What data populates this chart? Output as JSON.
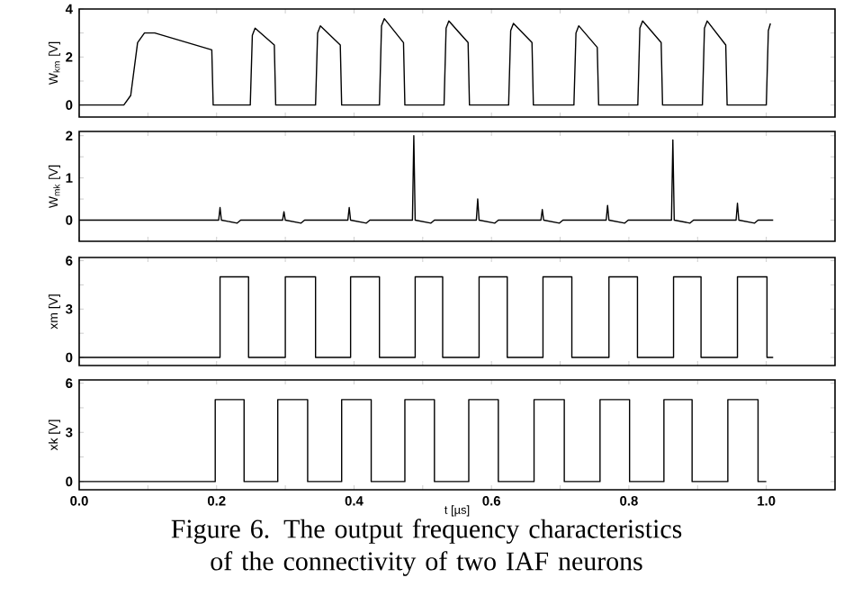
{
  "chart_data": [
    {
      "type": "line",
      "ylabel": "W$_{km}$ [V]",
      "color": "#000000",
      "tick_labels": "y",
      "xlim": [
        0,
        1.1
      ],
      "ylim": [
        -0.5,
        4
      ],
      "xticks": [
        {
          "value": 0,
          "label": null
        },
        {
          "value": 0.1,
          "label": null
        },
        {
          "value": 0.2,
          "label": null
        },
        {
          "value": 0.3,
          "label": null
        },
        {
          "value": 0.4,
          "label": null
        },
        {
          "value": 0.5,
          "label": null
        },
        {
          "value": 0.6,
          "label": null
        },
        {
          "value": 0.7,
          "label": null
        },
        {
          "value": 0.8,
          "label": null
        },
        {
          "value": 0.9,
          "label": null
        },
        {
          "value": 1.0,
          "label": null
        }
      ],
      "yticks": [
        0,
        {
          "value": 1,
          "label": null
        },
        2,
        {
          "value": 3,
          "label": null
        },
        4
      ],
      "x": [
        0,
        0.065,
        0.075,
        0.085,
        0.095,
        0.11,
        0.193,
        0.195,
        0.249,
        0.252,
        0.256,
        0.284,
        0.286,
        0.344,
        0.347,
        0.351,
        0.38,
        0.382,
        0.437,
        0.44,
        0.444,
        0.472,
        0.474,
        0.531,
        0.534,
        0.538,
        0.566,
        0.568,
        0.625,
        0.628,
        0.632,
        0.659,
        0.661,
        0.72,
        0.723,
        0.727,
        0.754,
        0.756,
        0.813,
        0.816,
        0.82,
        0.847,
        0.849,
        0.907,
        0.91,
        0.914,
        0.941,
        0.943,
        1.0,
        1.003,
        1.006
      ],
      "values": [
        0,
        0,
        0.4,
        2.6,
        3.0,
        3.0,
        2.3,
        0,
        0,
        2.9,
        3.2,
        2.5,
        0,
        0,
        3.0,
        3.3,
        2.5,
        0,
        0,
        3.3,
        3.6,
        2.6,
        0,
        0,
        3.2,
        3.5,
        2.6,
        0,
        0,
        3.1,
        3.4,
        2.6,
        0,
        0,
        3.0,
        3.3,
        2.4,
        0,
        0,
        3.2,
        3.5,
        2.6,
        0,
        0,
        3.2,
        3.5,
        2.5,
        0,
        0,
        3.1,
        3.4
      ]
    },
    {
      "type": "line",
      "ylabel": "W$_{mk}$ [V]",
      "color": "#000000",
      "tick_labels": "y",
      "xlim": [
        0,
        1.1
      ],
      "ylim": [
        -0.5,
        2.1
      ],
      "xticks": [
        {
          "value": 0,
          "label": null
        },
        {
          "value": 0.1,
          "label": null
        },
        {
          "value": 0.2,
          "label": null
        },
        {
          "value": 0.3,
          "label": null
        },
        {
          "value": 0.4,
          "label": null
        },
        {
          "value": 0.5,
          "label": null
        },
        {
          "value": 0.6,
          "label": null
        },
        {
          "value": 0.7,
          "label": null
        },
        {
          "value": 0.8,
          "label": null
        },
        {
          "value": 0.9,
          "label": null
        },
        {
          "value": 1.0,
          "label": null
        }
      ],
      "yticks": [
        0,
        {
          "value": 0.5,
          "label": null
        },
        1,
        {
          "value": 1.5,
          "label": null
        },
        2
      ],
      "x": [
        0,
        0.203,
        0.205,
        0.207,
        0.23,
        0.235,
        0.296,
        0.298,
        0.3,
        0.323,
        0.328,
        0.391,
        0.393,
        0.395,
        0.418,
        0.423,
        0.485,
        0.487,
        0.489,
        0.512,
        0.517,
        0.578,
        0.58,
        0.582,
        0.605,
        0.61,
        0.672,
        0.674,
        0.676,
        0.699,
        0.704,
        0.767,
        0.769,
        0.771,
        0.794,
        0.799,
        0.862,
        0.864,
        0.866,
        0.889,
        0.894,
        0.956,
        0.958,
        0.96,
        0.983,
        0.988,
        1.01
      ],
      "values": [
        0,
        0,
        0.3,
        0,
        -0.07,
        0,
        0,
        0.2,
        0,
        -0.07,
        0,
        0,
        0.3,
        0,
        -0.07,
        0,
        0,
        2.0,
        0,
        -0.07,
        0,
        0,
        0.5,
        0,
        -0.07,
        0,
        0,
        0.25,
        0,
        -0.07,
        0,
        0,
        0.35,
        0,
        -0.07,
        0,
        0,
        1.9,
        0,
        -0.07,
        0,
        0,
        0.4,
        0,
        -0.07,
        0,
        0
      ]
    },
    {
      "type": "line",
      "ylabel": "xm [V]",
      "color": "#000000",
      "tick_labels": "y",
      "xlim": [
        0,
        1.1
      ],
      "ylim": [
        -0.5,
        6.2
      ],
      "xticks": [
        {
          "value": 0,
          "label": null
        },
        {
          "value": 0.1,
          "label": null
        },
        {
          "value": 0.2,
          "label": null
        },
        {
          "value": 0.3,
          "label": null
        },
        {
          "value": 0.4,
          "label": null
        },
        {
          "value": 0.5,
          "label": null
        },
        {
          "value": 0.6,
          "label": null
        },
        {
          "value": 0.7,
          "label": null
        },
        {
          "value": 0.8,
          "label": null
        },
        {
          "value": 0.9,
          "label": null
        },
        {
          "value": 1.0,
          "label": null
        }
      ],
      "yticks": [
        0,
        {
          "value": 1.5,
          "label": null
        },
        3,
        {
          "value": 4.5,
          "label": null
        },
        6
      ],
      "x": [
        0,
        0.205,
        0.205,
        0.2465,
        0.2465,
        0.3,
        0.3,
        0.344,
        0.344,
        0.395,
        0.395,
        0.437,
        0.437,
        0.489,
        0.489,
        0.529,
        0.529,
        0.582,
        0.582,
        0.623,
        0.623,
        0.675,
        0.675,
        0.717,
        0.717,
        0.771,
        0.771,
        0.8125,
        0.8125,
        0.865,
        0.865,
        0.905,
        0.905,
        0.958,
        0.958,
        1.001,
        1.001,
        1.01
      ],
      "values": [
        0,
        0,
        5,
        5,
        0,
        0,
        5,
        5,
        0,
        0,
        5,
        5,
        0,
        0,
        5,
        5,
        0,
        0,
        5,
        5,
        0,
        0,
        5,
        5,
        0,
        0,
        5,
        5,
        0,
        0,
        5,
        5,
        0,
        0,
        5,
        5,
        0,
        0
      ]
    },
    {
      "type": "line",
      "ylabel": "xk [V]",
      "xlabel": "t [µs]",
      "color": "#000000",
      "xlim": [
        0,
        1.1
      ],
      "ylim": [
        -0.5,
        6.2
      ],
      "xticks": [
        {
          "value": 0,
          "label": "0.0"
        },
        {
          "value": 0.1,
          "label": null
        },
        {
          "value": 0.2,
          "label": "0.2"
        },
        {
          "value": 0.3,
          "label": null
        },
        {
          "value": 0.4,
          "label": "0.4"
        },
        {
          "value": 0.5,
          "label": null
        },
        {
          "value": 0.6,
          "label": "0.6"
        },
        {
          "value": 0.7,
          "label": null
        },
        {
          "value": 0.8,
          "label": "0.8"
        },
        {
          "value": 0.9,
          "label": null
        },
        {
          "value": 1.0,
          "label": "1.0"
        }
      ],
      "yticks": [
        0,
        {
          "value": 1.5,
          "label": null
        },
        3,
        {
          "value": 4.5,
          "label": null
        },
        6
      ],
      "x": [
        0,
        0.198,
        0.198,
        0.24,
        0.24,
        0.289,
        0.289,
        0.3325,
        0.3325,
        0.382,
        0.382,
        0.425,
        0.425,
        0.474,
        0.474,
        0.517,
        0.517,
        0.567,
        0.567,
        0.61,
        0.61,
        0.662,
        0.662,
        0.706,
        0.706,
        0.758,
        0.758,
        0.801,
        0.801,
        0.851,
        0.851,
        0.892,
        0.892,
        0.944,
        0.944,
        0.988,
        0.988,
        1.0
      ],
      "values": [
        0,
        0,
        5,
        5,
        0,
        0,
        5,
        5,
        0,
        0,
        5,
        5,
        0,
        0,
        5,
        5,
        0,
        0,
        5,
        5,
        0,
        0,
        5,
        5,
        0,
        0,
        5,
        5,
        0,
        0,
        5,
        5,
        0,
        0,
        5,
        5,
        0,
        0
      ],
      "annotations": [
        "Figure 6. The output frequency characteristics of the connectivity of two IAF neurons"
      ]
    }
  ]
}
